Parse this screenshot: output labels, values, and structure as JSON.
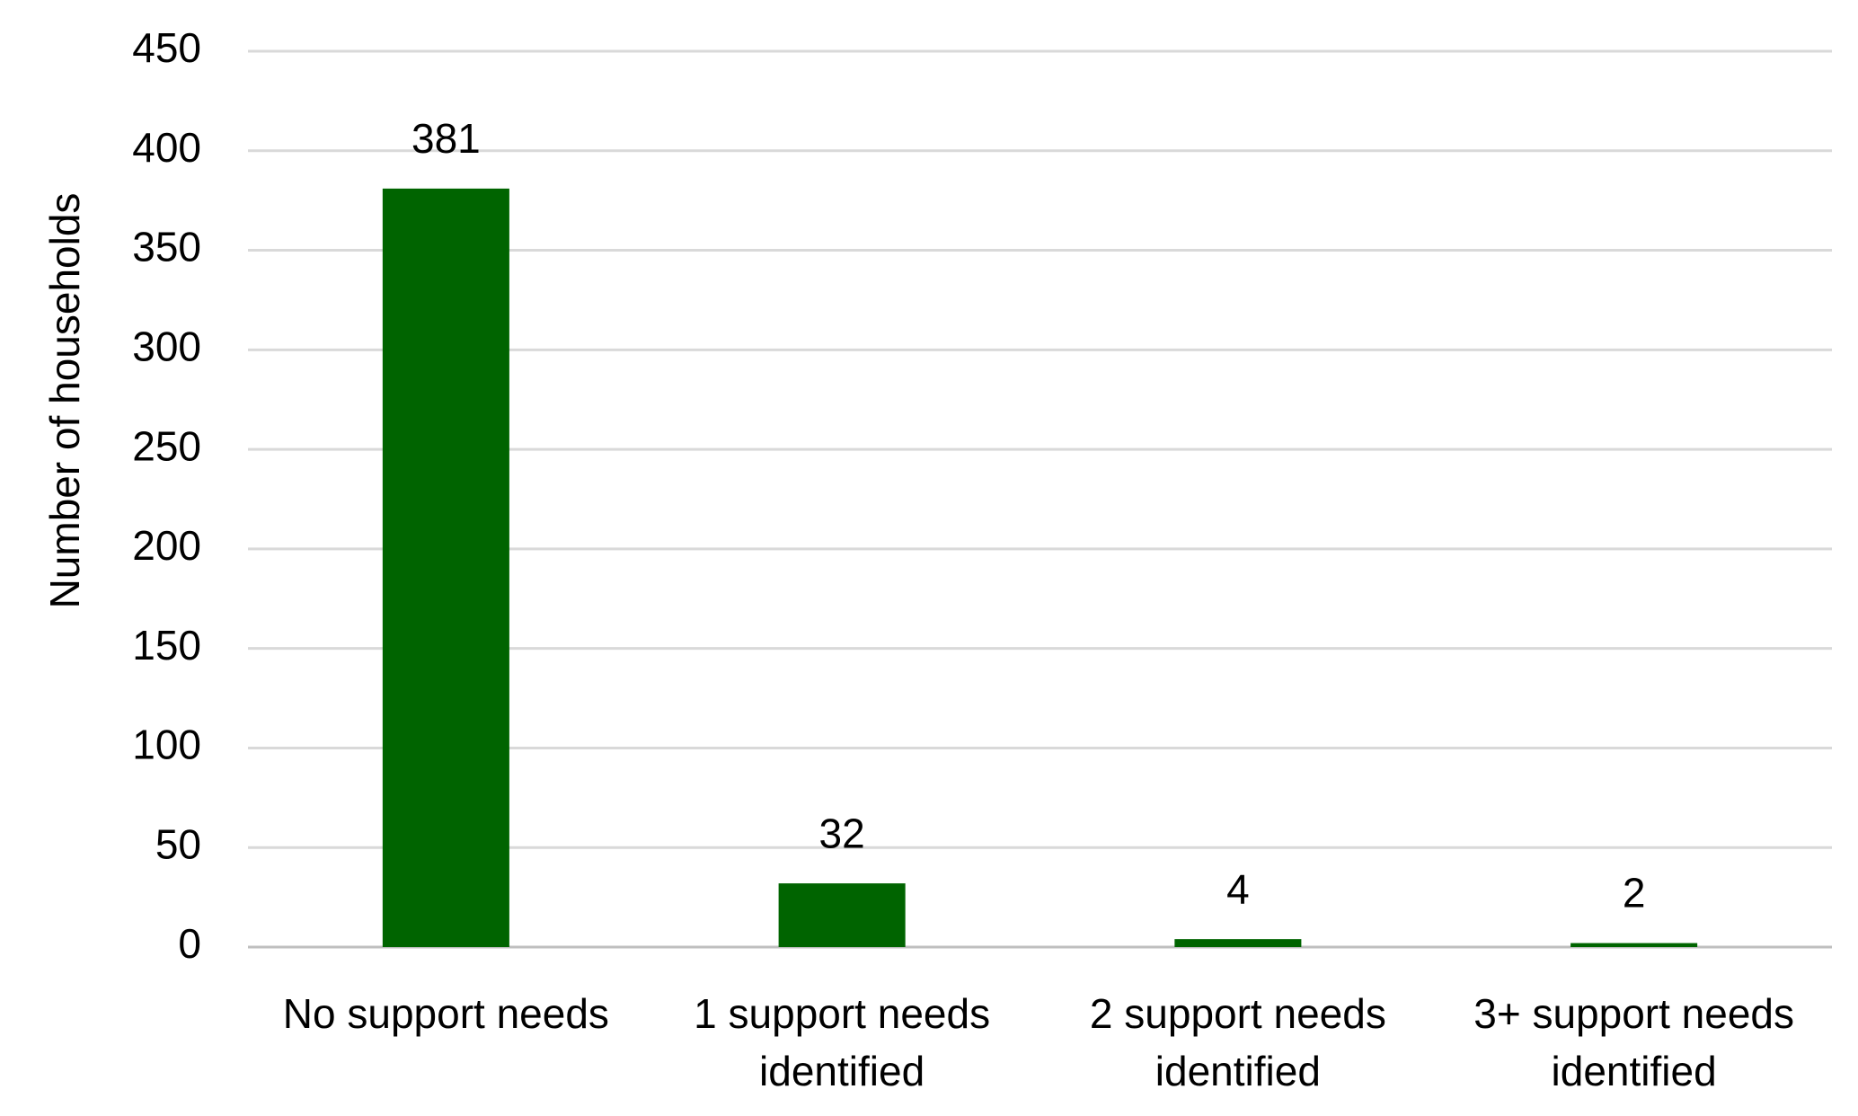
{
  "chart_data": {
    "type": "bar",
    "y_label": "Number of households",
    "categories": [
      "No support needs",
      "1 support needs identified",
      "2 support needs identified",
      "3+ support needs identified"
    ],
    "values": [
      381,
      32,
      4,
      2
    ],
    "color": "#006400",
    "ylim": [
      0,
      450
    ],
    "yticks": [
      0,
      50,
      100,
      150,
      200,
      250,
      300,
      350,
      400,
      450
    ],
    "grid": true
  }
}
